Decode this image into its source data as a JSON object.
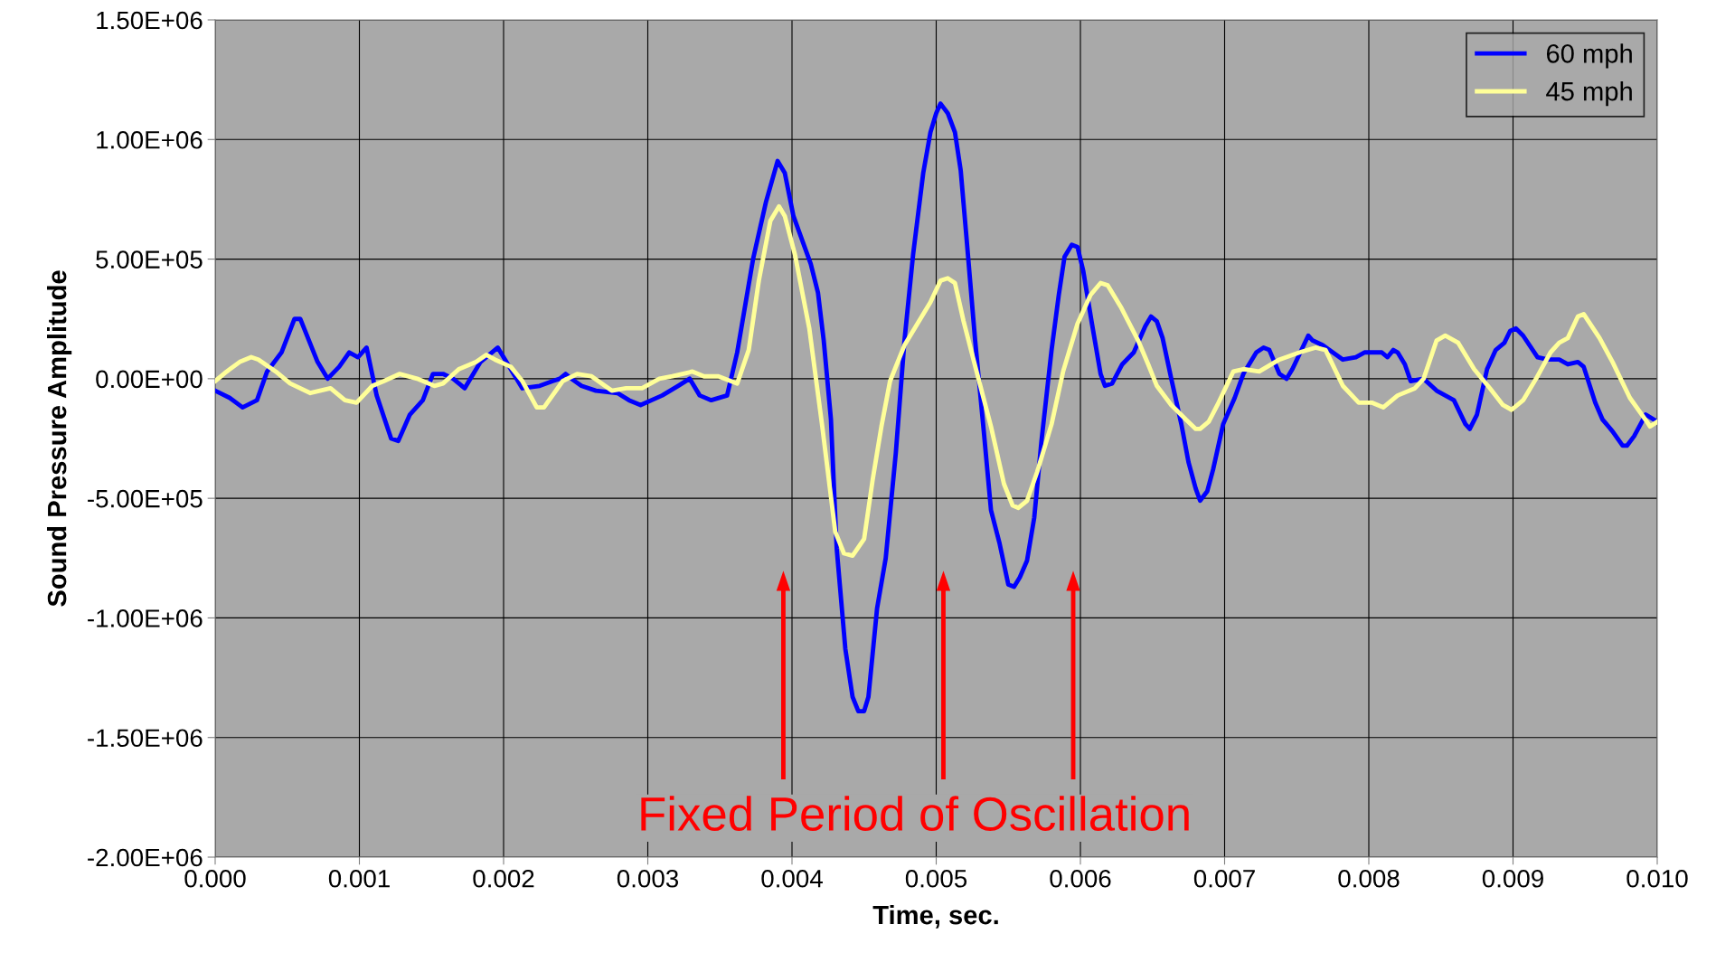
{
  "chart_data": {
    "type": "line",
    "xlabel": "Time, sec.",
    "ylabel": "Sound Pressure Amplitude",
    "annotations": [
      "Fixed Period of Oscillation"
    ],
    "xlim": [
      0,
      0.01
    ],
    "ylim": [
      -2000000,
      1500000
    ],
    "xticks": [
      {
        "value": 0,
        "label": "0.000"
      },
      {
        "value": 0.001,
        "label": "0.001"
      },
      {
        "value": 0.002,
        "label": "0.002"
      },
      {
        "value": 0.003,
        "label": "0.003"
      },
      {
        "value": 0.004,
        "label": "0.004"
      },
      {
        "value": 0.005,
        "label": "0.005"
      },
      {
        "value": 0.006,
        "label": "0.006"
      },
      {
        "value": 0.007,
        "label": "0.007"
      },
      {
        "value": 0.008,
        "label": "0.008"
      },
      {
        "value": 0.009,
        "label": "0.009"
      },
      {
        "value": 0.01,
        "label": "0.010"
      }
    ],
    "yticks": [
      {
        "value": -2000000,
        "label": "-2.00E+06"
      },
      {
        "value": -1500000,
        "label": "-1.50E+06"
      },
      {
        "value": -1000000,
        "label": "-1.00E+06"
      },
      {
        "value": -500000,
        "label": "-5.00E+05"
      },
      {
        "value": 0,
        "label": "0.00E+00"
      },
      {
        "value": 500000,
        "label": "5.00E+05"
      },
      {
        "value": 1000000,
        "label": "1.00E+06"
      },
      {
        "value": 1500000,
        "label": "1.50E+06"
      }
    ],
    "grid": true,
    "legend": "top right",
    "marker": "none",
    "line_style": "solid",
    "series": [
      {
        "name": "60 mph",
        "color": "#0000ff",
        "x": [
          0.0,
          0.0001,
          0.00019,
          0.00029,
          0.00036,
          0.00046,
          0.00055,
          0.00059,
          0.00071,
          0.00078,
          0.00086,
          0.00093,
          0.00099,
          0.00105,
          0.00112,
          0.00122,
          0.00127,
          0.00135,
          0.00144,
          0.00151,
          0.00158,
          0.00165,
          0.00173,
          0.00184,
          0.00196,
          0.00206,
          0.00213,
          0.00225,
          0.00234,
          0.00239,
          0.00243,
          0.00247,
          0.00254,
          0.00264,
          0.00279,
          0.00287,
          0.00295,
          0.0031,
          0.00321,
          0.00329,
          0.00336,
          0.00344,
          0.00355,
          0.00362,
          0.00373,
          0.00382,
          0.0039,
          0.00395,
          0.00401,
          0.00413,
          0.00418,
          0.00422,
          0.00427,
          0.00431,
          0.00437,
          0.00442,
          0.00446,
          0.0045,
          0.00453,
          0.00459,
          0.00465,
          0.00472,
          0.00478,
          0.00484,
          0.00491,
          0.00496,
          0.005,
          0.00503,
          0.00508,
          0.00513,
          0.00517,
          0.00521,
          0.00527,
          0.00533,
          0.00538,
          0.00544,
          0.0055,
          0.00554,
          0.00558,
          0.00563,
          0.00568,
          0.00573,
          0.0058,
          0.00585,
          0.00589,
          0.00594,
          0.00598,
          0.00602,
          0.00608,
          0.00614,
          0.00617,
          0.00622,
          0.00629,
          0.00637,
          0.00645,
          0.00649,
          0.00653,
          0.00657,
          0.00663,
          0.0067,
          0.00675,
          0.0068,
          0.00683,
          0.00688,
          0.00692,
          0.00699,
          0.00707,
          0.00713,
          0.00722,
          0.00727,
          0.00731,
          0.00738,
          0.00743,
          0.00747,
          0.00758,
          0.00761,
          0.00768,
          0.00782,
          0.00791,
          0.00797,
          0.00809,
          0.00813,
          0.00817,
          0.0082,
          0.00825,
          0.00829,
          0.00838,
          0.00847,
          0.00859,
          0.00867,
          0.0087,
          0.00875,
          0.00882,
          0.00888,
          0.00894,
          0.00898,
          0.00902,
          0.00907,
          0.00917,
          0.00924,
          0.00932,
          0.00938,
          0.00945,
          0.00949,
          0.00957,
          0.00962,
          0.00969,
          0.00976,
          0.00979,
          0.00984,
          0.00992,
          0.01
        ],
        "values": [
          -50000,
          -80000,
          -120000,
          -90000,
          30000,
          110000,
          250000,
          250000,
          70000,
          0,
          50000,
          110000,
          90000,
          130000,
          -70000,
          -250000,
          -260000,
          -150000,
          -90000,
          20000,
          20000,
          0,
          -40000,
          70000,
          130000,
          30000,
          -40000,
          -30000,
          -10000,
          0,
          20000,
          0,
          -30000,
          -50000,
          -60000,
          -90000,
          -110000,
          -70000,
          -30000,
          0,
          -70000,
          -90000,
          -70000,
          110000,
          500000,
          740000,
          910000,
          860000,
          680000,
          480000,
          360000,
          160000,
          -170000,
          -710000,
          -1130000,
          -1330000,
          -1390000,
          -1390000,
          -1330000,
          -960000,
          -750000,
          -310000,
          160000,
          520000,
          860000,
          1030000,
          1110000,
          1150000,
          1110000,
          1030000,
          870000,
          590000,
          160000,
          -220000,
          -550000,
          -690000,
          -860000,
          -870000,
          -830000,
          -760000,
          -580000,
          -260000,
          120000,
          350000,
          510000,
          560000,
          550000,
          450000,
          230000,
          20000,
          -30000,
          -20000,
          60000,
          110000,
          220000,
          260000,
          240000,
          170000,
          0,
          -190000,
          -350000,
          -460000,
          -510000,
          -470000,
          -380000,
          -190000,
          -80000,
          20000,
          110000,
          130000,
          120000,
          20000,
          0,
          40000,
          180000,
          160000,
          140000,
          80000,
          90000,
          110000,
          110000,
          90000,
          120000,
          110000,
          60000,
          -10000,
          0,
          -50000,
          -90000,
          -190000,
          -210000,
          -150000,
          40000,
          120000,
          150000,
          200000,
          210000,
          180000,
          90000,
          80000,
          80000,
          60000,
          70000,
          50000,
          -100000,
          -170000,
          -220000,
          -280000,
          -280000,
          -240000,
          -150000,
          -180000
        ]
      },
      {
        "name": "45 mph",
        "color": "#ffff99",
        "x": [
          0.0,
          8e-05,
          0.00017,
          0.00025,
          0.0003,
          0.00042,
          0.00052,
          0.00066,
          0.0008,
          0.0009,
          0.00098,
          0.00109,
          0.00117,
          0.00128,
          0.0014,
          0.00152,
          0.00158,
          0.00169,
          0.00181,
          0.00188,
          0.00194,
          0.00205,
          0.00213,
          0.00223,
          0.00228,
          0.00241,
          0.00251,
          0.00261,
          0.00275,
          0.00285,
          0.00296,
          0.00308,
          0.00317,
          0.00331,
          0.00339,
          0.00349,
          0.00362,
          0.0037,
          0.00377,
          0.00385,
          0.00391,
          0.00395,
          0.00402,
          0.00412,
          0.00421,
          0.0043,
          0.00436,
          0.00442,
          0.0045,
          0.00456,
          0.00462,
          0.00468,
          0.00478,
          0.00487,
          0.00496,
          0.00503,
          0.00508,
          0.00513,
          0.00519,
          0.00528,
          0.00538,
          0.00547,
          0.00553,
          0.00557,
          0.00563,
          0.0057,
          0.0058,
          0.00588,
          0.00598,
          0.00607,
          0.00614,
          0.00619,
          0.00628,
          0.0064,
          0.00647,
          0.00653,
          0.00663,
          0.00673,
          0.0068,
          0.00683,
          0.00689,
          0.00695,
          0.00706,
          0.00713,
          0.00724,
          0.00738,
          0.00752,
          0.00763,
          0.0077,
          0.00782,
          0.00793,
          0.00802,
          0.0081,
          0.0082,
          0.00832,
          0.00838,
          0.00847,
          0.00853,
          0.00862,
          0.00873,
          0.00884,
          0.00893,
          0.00899,
          0.00907,
          0.00916,
          0.00926,
          0.00932,
          0.00938,
          0.00945,
          0.00949,
          0.0096,
          0.00969,
          0.00981,
          0.00994,
          0.00995,
          0.01
        ],
        "values": [
          -10000,
          30000,
          70000,
          90000,
          80000,
          30000,
          -20000,
          -60000,
          -40000,
          -90000,
          -100000,
          -30000,
          -10000,
          20000,
          0,
          -30000,
          -20000,
          40000,
          70000,
          100000,
          80000,
          50000,
          -10000,
          -120000,
          -120000,
          -10000,
          20000,
          10000,
          -50000,
          -40000,
          -40000,
          0,
          10000,
          30000,
          10000,
          10000,
          -20000,
          120000,
          410000,
          660000,
          720000,
          680000,
          520000,
          210000,
          -200000,
          -640000,
          -730000,
          -740000,
          -670000,
          -420000,
          -200000,
          -10000,
          140000,
          230000,
          320000,
          410000,
          420000,
          400000,
          240000,
          30000,
          -200000,
          -440000,
          -530000,
          -540000,
          -510000,
          -390000,
          -190000,
          30000,
          230000,
          350000,
          400000,
          390000,
          300000,
          160000,
          60000,
          -30000,
          -110000,
          -170000,
          -210000,
          -210000,
          -180000,
          -110000,
          30000,
          40000,
          30000,
          80000,
          110000,
          130000,
          120000,
          -30000,
          -100000,
          -100000,
          -120000,
          -70000,
          -40000,
          0,
          160000,
          180000,
          150000,
          40000,
          -40000,
          -110000,
          -130000,
          -90000,
          0,
          110000,
          150000,
          170000,
          260000,
          270000,
          170000,
          70000,
          -80000,
          -190000,
          -200000,
          -180000
        ]
      }
    ]
  }
}
